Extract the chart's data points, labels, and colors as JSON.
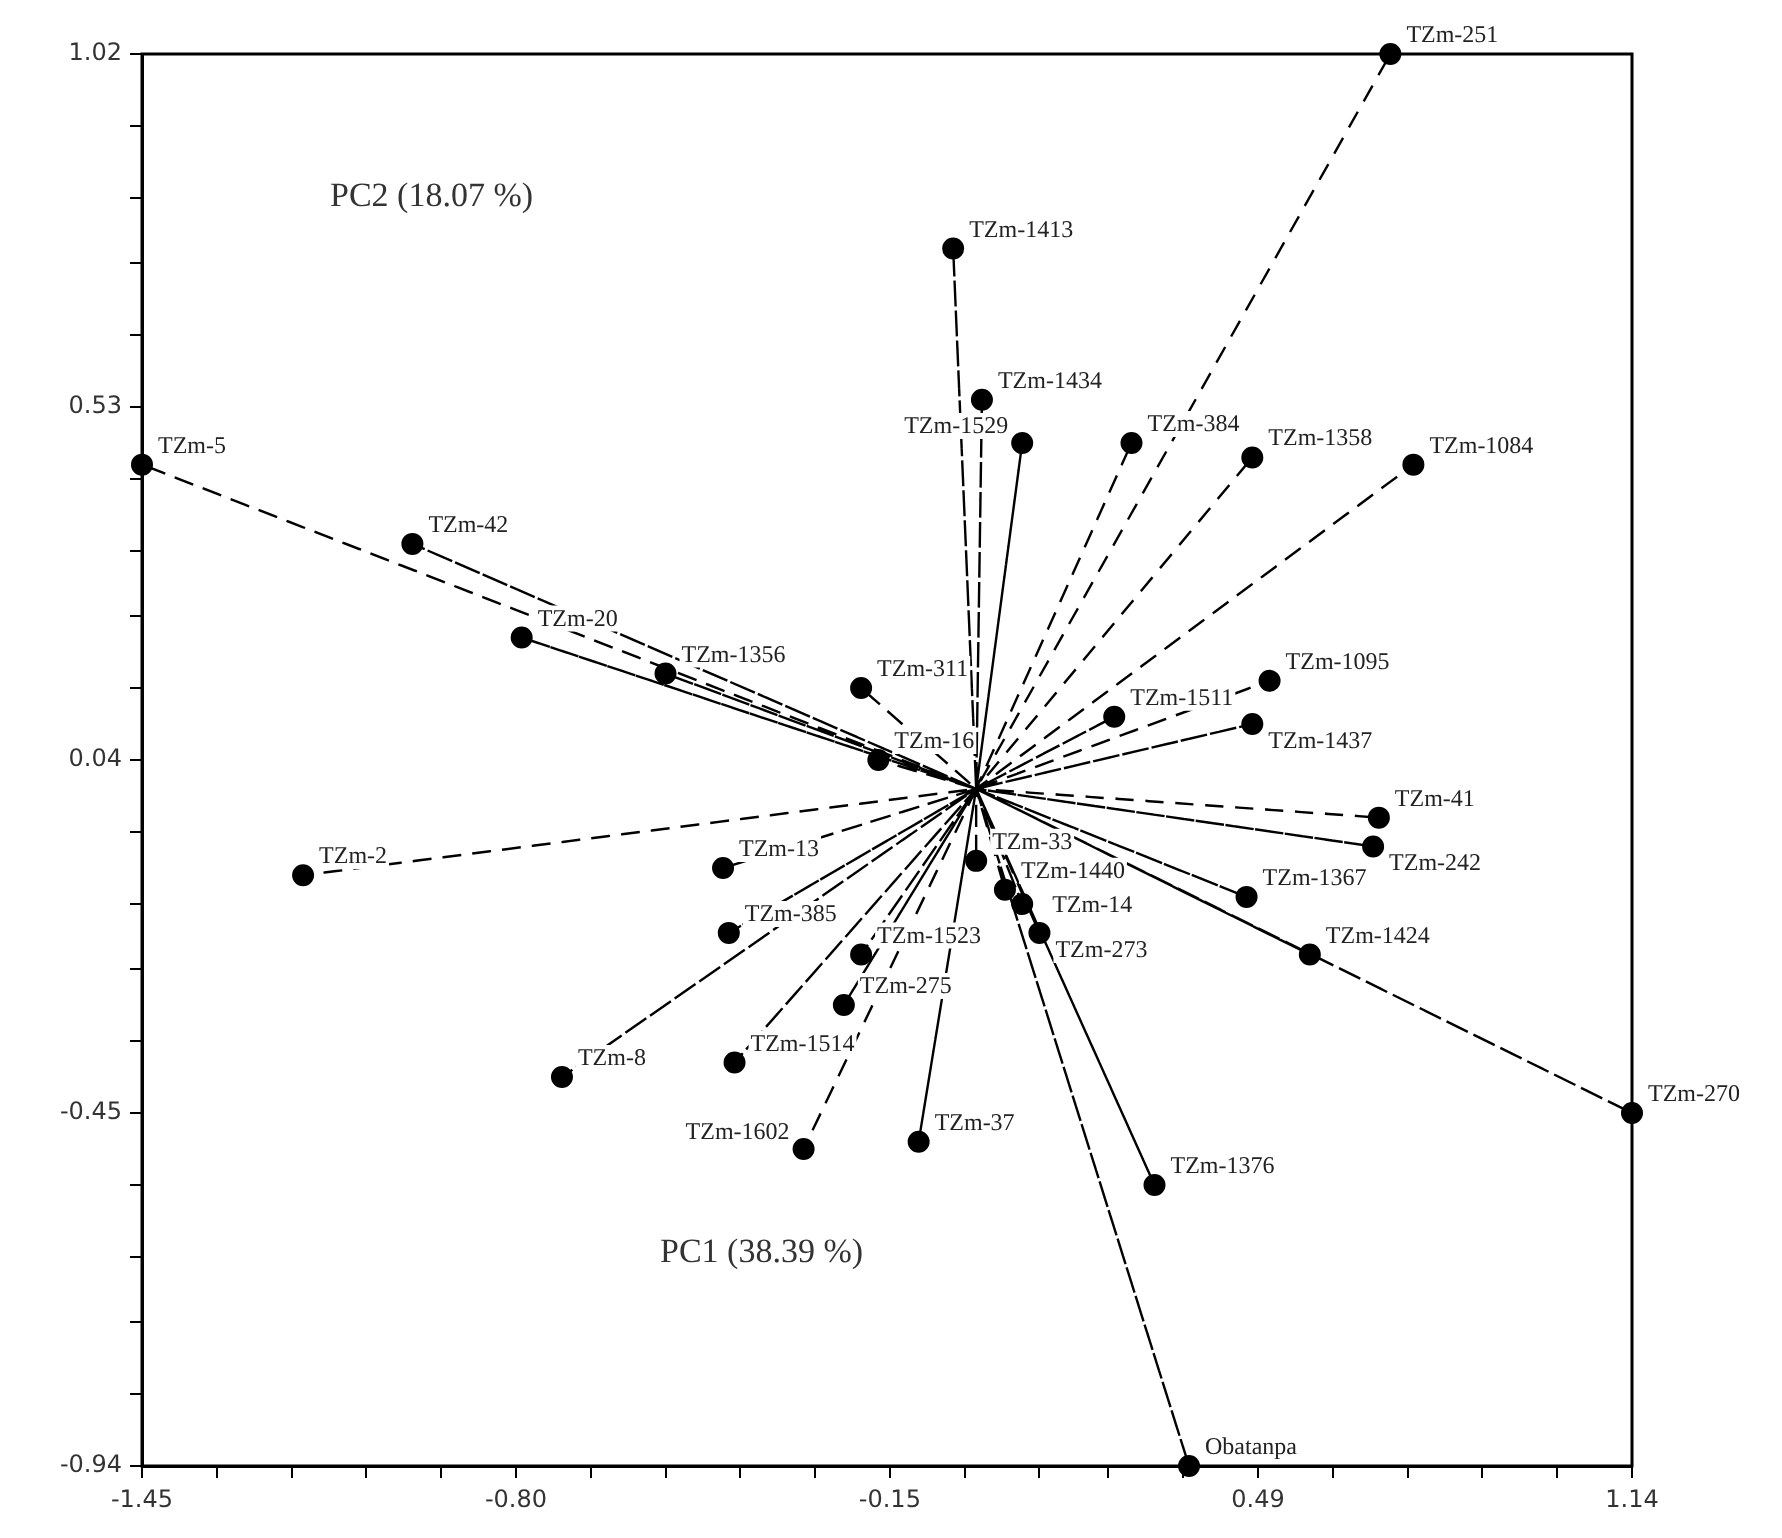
{
  "chart_data": {
    "type": "scatter",
    "xlabel": "PC1 (38.39 %)",
    "ylabel": "PC2 (18.07 %)",
    "xlim": [
      -1.45,
      1.14
    ],
    "ylim": [
      -0.94,
      1.02
    ],
    "xticks": [
      -1.45,
      {
        "value": -1.32,
        "label": null
      },
      {
        "value": -1.19,
        "label": null
      },
      {
        "value": -1.06,
        "label": null
      },
      {
        "value": -0.93,
        "label": null
      },
      {
        "value": -0.8,
        "label": "-0.80"
      },
      {
        "value": -0.67,
        "label": null
      },
      {
        "value": -0.54,
        "label": null
      },
      {
        "value": -0.41,
        "label": null
      },
      {
        "value": -0.28,
        "label": null
      },
      -0.15,
      {
        "value": -0.02,
        "label": null
      },
      {
        "value": 0.11,
        "label": null
      },
      {
        "value": 0.23,
        "label": null
      },
      {
        "value": 0.36,
        "label": null
      },
      0.49,
      {
        "value": 0.62,
        "label": null
      },
      {
        "value": 0.75,
        "label": null
      },
      {
        "value": 0.88,
        "label": null
      },
      {
        "value": 1.01,
        "label": null
      },
      1.14
    ],
    "yticks": [
      -0.94,
      {
        "value": -0.84,
        "label": null
      },
      {
        "value": -0.74,
        "label": null
      },
      {
        "value": -0.65,
        "label": null
      },
      {
        "value": -0.55,
        "label": null
      },
      -0.45,
      {
        "value": -0.35,
        "label": null
      },
      {
        "value": -0.25,
        "label": null
      },
      {
        "value": -0.16,
        "label": null
      },
      {
        "value": -0.06,
        "label": null
      },
      0.04,
      {
        "value": 0.14,
        "label": null
      },
      {
        "value": 0.24,
        "label": null
      },
      {
        "value": 0.33,
        "label": null
      },
      {
        "value": 0.43,
        "label": null
      },
      0.53,
      {
        "value": 0.63,
        "label": null
      },
      {
        "value": 0.73,
        "label": null
      },
      {
        "value": 0.82,
        "label": null
      },
      {
        "value": 0.92,
        "label": null
      },
      1.02
    ],
    "series": [
      {
        "type": "line",
        "color": "#000000",
        "line_style": "dashed",
        "marker": "none",
        "x": [
          0,
          -1.45,
          0,
          -0.98,
          0,
          -0.79,
          0,
          -0.54,
          0,
          -0.2,
          0,
          -0.17,
          0,
          -1.17,
          0,
          -0.44,
          0,
          -0.43,
          0,
          -0.2,
          0,
          -0.23,
          0,
          -0.42,
          0,
          -0.72,
          0,
          -0.3,
          0,
          -0.1,
          0,
          0.0,
          0,
          0.05,
          0,
          0.08,
          0,
          0.11,
          0,
          0.31,
          0,
          0.37,
          0,
          1.14,
          0,
          0.58,
          0,
          0.47,
          0,
          0.7,
          0,
          0.69,
          0,
          0.48,
          0,
          0.51,
          0,
          0.24,
          0,
          0.76,
          0,
          0.48,
          0,
          0.27,
          0,
          0.08,
          0,
          0.01,
          0,
          -0.04,
          0,
          0.72
        ],
        "values": [
          0,
          0.45,
          0,
          0.34,
          0,
          0.21,
          0,
          0.16,
          0,
          0.14,
          0,
          0.04,
          0,
          -0.12,
          0,
          -0.11,
          0,
          -0.2,
          0,
          -0.23,
          0,
          -0.3,
          0,
          -0.38,
          0,
          -0.4,
          0,
          -0.5,
          0,
          -0.49,
          0,
          -0.1,
          0,
          -0.14,
          0,
          -0.16,
          0,
          -0.2,
          0,
          -0.55,
          0,
          -0.94,
          0,
          -0.45,
          0,
          -0.23,
          0,
          -0.15,
          0,
          -0.04,
          0,
          -0.08,
          0,
          0.09,
          0,
          0.15,
          0,
          0.1,
          0,
          0.45,
          0,
          0.46,
          0,
          0.48,
          0,
          0.48,
          0,
          0.54,
          0,
          0.75,
          0,
          1.02
        ]
      },
      {
        "type": "scatter",
        "color": "#000000",
        "marker": "circle",
        "x": [
          -1.45,
          -0.98,
          -0.79,
          -0.54,
          -0.2,
          -0.17,
          -1.17,
          -0.44,
          -0.43,
          -0.2,
          -0.23,
          -0.42,
          -0.72,
          -0.3,
          -0.1,
          0.0,
          0.05,
          0.08,
          0.11,
          0.31,
          0.37,
          1.14,
          0.58,
          0.47,
          0.7,
          0.69,
          0.48,
          0.51,
          0.24,
          0.76,
          0.48,
          0.27,
          0.08,
          0.01,
          -0.04,
          0.72
        ],
        "values": [
          0.45,
          0.34,
          0.21,
          0.16,
          0.14,
          0.04,
          -0.12,
          -0.11,
          -0.2,
          -0.23,
          -0.3,
          -0.38,
          -0.4,
          -0.5,
          -0.49,
          -0.1,
          -0.14,
          -0.16,
          -0.2,
          -0.55,
          -0.94,
          -0.45,
          -0.23,
          -0.15,
          -0.04,
          -0.08,
          0.09,
          0.15,
          0.1,
          0.45,
          0.46,
          0.48,
          0.48,
          0.54,
          0.75,
          1.02
        ],
        "value_labels": [
          "TZm-5",
          "TZm-42",
          "TZm-20",
          "TZm-1356",
          "TZm-311",
          "TZm-16",
          "TZm-2",
          "TZm-13",
          "TZm-385",
          "TZm-1523",
          "TZm-275",
          "TZm-1514",
          "TZm-8",
          "TZm-1602",
          "TZm-37",
          "TZm-33",
          "TZm-1440",
          "TZm-14",
          "TZm-273",
          "TZm-1376",
          "Obatanpa",
          "TZm-270",
          "TZm-1424",
          "TZm-1367",
          "TZm-41",
          "TZm-242",
          "TZm-1437",
          "TZm-1095",
          "TZm-1511",
          "TZm-1084",
          "TZm-1358",
          "TZm-384",
          "TZm-1529",
          "TZm-1434",
          "TZm-1413",
          "TZm-251"
        ]
      }
    ]
  }
}
